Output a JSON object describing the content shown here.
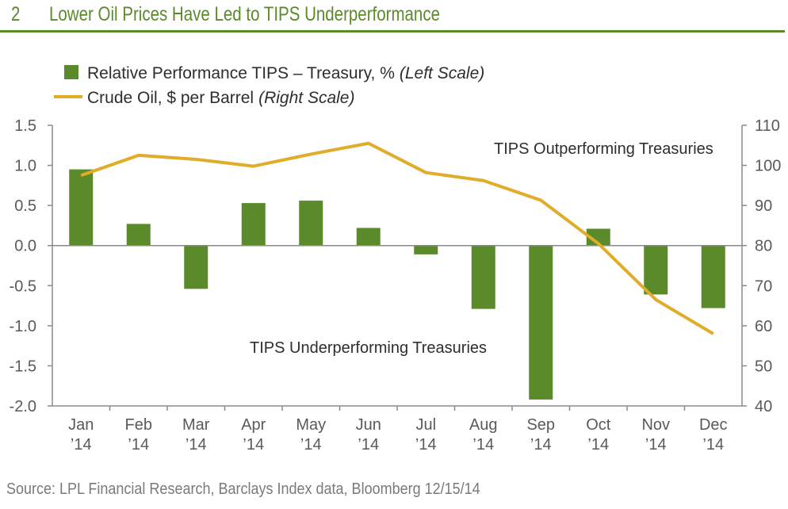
{
  "header": {
    "number": "2",
    "title": "Lower Oil Prices Have Led to TIPS Underperformance"
  },
  "colors": {
    "bar": "#5b8a2b",
    "line": "#e0ac2a",
    "axis": "#8a8a8a",
    "accent": "#5b8a2b"
  },
  "chart_data": {
    "type": "bar",
    "categories": [
      [
        "Jan",
        "’14"
      ],
      [
        "Feb",
        "’14"
      ],
      [
        "Mar",
        "’14"
      ],
      [
        "Apr",
        "’14"
      ],
      [
        "May",
        "’14"
      ],
      [
        "Jun",
        "’14"
      ],
      [
        "Jul",
        "’14"
      ],
      [
        "Aug",
        "’14"
      ],
      [
        "Sep",
        "’14"
      ],
      [
        "Oct",
        "’14"
      ],
      [
        "Nov",
        "’14"
      ],
      [
        "Dec",
        "’14"
      ]
    ],
    "series": [
      {
        "name": "Relative Performance TIPS – Treasury, %",
        "legend_main": "Relative Performance TIPS – Treasury, %",
        "legend_italic": "(Left Scale)",
        "type": "bar",
        "axis": "left",
        "values": [
          0.95,
          0.27,
          -0.54,
          0.53,
          0.56,
          0.22,
          -0.11,
          -0.79,
          -1.92,
          0.21,
          -0.61,
          -0.78
        ]
      },
      {
        "name": "Crude Oil, $ per Barrel",
        "legend_main": "Crude Oil, $ per Barrel",
        "legend_italic": "(Right Scale)",
        "type": "line",
        "axis": "right",
        "values": [
          97.5,
          102.5,
          101.5,
          99.8,
          102.8,
          105.5,
          98.2,
          96.2,
          91.3,
          80.5,
          66.5,
          58.0
        ]
      }
    ],
    "y_left": {
      "ylim": [
        -2.0,
        1.5
      ],
      "ticks": [
        "1.5",
        "1.0",
        "0.5",
        "0.0",
        "-0.5",
        "-1.0",
        "-1.5",
        "-2.0"
      ]
    },
    "y_right": {
      "ylim": [
        40,
        110
      ],
      "ticks": [
        "110",
        "100",
        "90",
        "80",
        "70",
        "60",
        "50",
        "40"
      ]
    },
    "annotations": [
      {
        "text": "TIPS Outperforming Treasuries"
      },
      {
        "text": "TIPS Underperforming Treasuries"
      }
    ],
    "legend_position": "top-left",
    "grid": false
  },
  "source": "Source: LPL Financial Research, Barclays Index data, Bloomberg   12/15/14"
}
